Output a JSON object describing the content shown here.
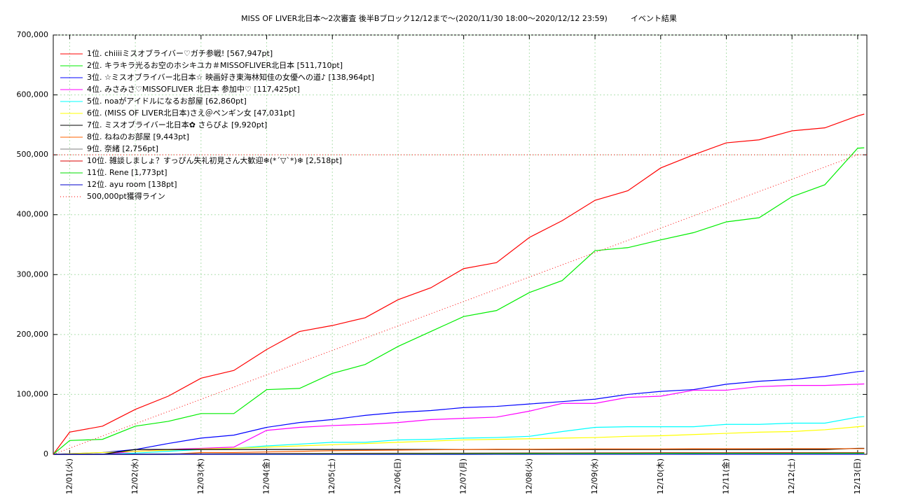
{
  "chart_data": {
    "type": "line",
    "title": "MISS OF LIVER北日本～2次審査 後半Bブロック12/12まで～(2020/11/30 18:00～2020/12/12 23:59)　　　イベント結果",
    "x": [
      0.75,
      1,
      1.5,
      2,
      2.5,
      3,
      3.5,
      4,
      4.5,
      5,
      5.5,
      6,
      6.5,
      7,
      7.5,
      8,
      8.5,
      9,
      9.5,
      10,
      10.5,
      11,
      11.5,
      12,
      12.5,
      13,
      13.1
    ],
    "xlim": [
      0.75,
      13.14
    ],
    "xticks": [
      {
        "value": 1,
        "label": "12/01(火)"
      },
      {
        "value": 2,
        "label": "12/02(水)"
      },
      {
        "value": 3,
        "label": "12/03(木)"
      },
      {
        "value": 4,
        "label": "12/04(金)"
      },
      {
        "value": 5,
        "label": "12/05(土)"
      },
      {
        "value": 6,
        "label": "12/06(日)"
      },
      {
        "value": 7,
        "label": "12/07(月)"
      },
      {
        "value": 8,
        "label": "12/08(火)"
      },
      {
        "value": 9,
        "label": "12/09(水)"
      },
      {
        "value": 10,
        "label": "12/10(木)"
      },
      {
        "value": 11,
        "label": "12/11(金)"
      },
      {
        "value": 12,
        "label": "12/12(土)"
      },
      {
        "value": 13,
        "label": "12/13(日)"
      }
    ],
    "ylim": [
      0,
      700000
    ],
    "yticks": [
      {
        "value": 0,
        "label": "0"
      },
      {
        "value": 100000,
        "label": "100,000"
      },
      {
        "value": 200000,
        "label": "200,000"
      },
      {
        "value": 300000,
        "label": "300,000"
      },
      {
        "value": 400000,
        "label": "400,000"
      },
      {
        "value": 500000,
        "label": "500,000"
      },
      {
        "value": 600000,
        "label": "600,000"
      },
      {
        "value": 700000,
        "label": "700,000"
      }
    ],
    "grid": true,
    "legend": "upper left",
    "series": [
      {
        "name": "1位. chiiiiミスオブライバー♡ガチ参戦! [567,947pt]",
        "color": "#ff0000",
        "values": [
          0,
          37000,
          47000,
          75000,
          97000,
          127000,
          140000,
          175000,
          205000,
          215000,
          228000,
          258000,
          278000,
          310000,
          320000,
          362000,
          390000,
          424000,
          440000,
          478000,
          500000,
          520000,
          525000,
          540000,
          545000,
          565000,
          567947
        ]
      },
      {
        "name": "2位. キラキラ光るお空のホシキユカ＃MISSOFLIVER北日本 [511,710pt]",
        "color": "#00ee00",
        "values": [
          0,
          23000,
          25000,
          47000,
          55000,
          68000,
          68000,
          108000,
          110000,
          135000,
          150000,
          180000,
          205000,
          230000,
          240000,
          270000,
          290000,
          340000,
          345000,
          358000,
          370000,
          388000,
          395000,
          430000,
          450000,
          511000,
          511710
        ]
      },
      {
        "name": "3位. ☆ミスオブライバー北日本☆ 映画好き東海林知佳の女優への道♪ [138,964pt]",
        "color": "#0000ff",
        "values": [
          0,
          1000,
          3000,
          8000,
          18000,
          27000,
          32000,
          45000,
          53000,
          58000,
          65000,
          70000,
          73000,
          78000,
          80000,
          84000,
          88000,
          92000,
          100000,
          105000,
          108000,
          117000,
          122000,
          125000,
          130000,
          138000,
          138964
        ]
      },
      {
        "name": "4位. みさみさ♡MISSOFLIVER 北日本 参加中♡ [117,425pt]",
        "color": "#ff00ff",
        "values": [
          0,
          0,
          0,
          5000,
          8000,
          10000,
          12000,
          40000,
          45000,
          48000,
          50000,
          53000,
          58000,
          60000,
          62000,
          72000,
          85000,
          85000,
          95000,
          97000,
          107000,
          107000,
          113000,
          115000,
          115000,
          117000,
          117425
        ]
      },
      {
        "name": "5位. noaがアイドルになるお部屋 [62,860pt]",
        "color": "#00ffff",
        "values": [
          0,
          0,
          0,
          2000,
          5000,
          8000,
          10000,
          14000,
          17000,
          20000,
          20000,
          24000,
          25000,
          27000,
          28000,
          30000,
          38000,
          45000,
          46000,
          46000,
          46000,
          50000,
          50000,
          52000,
          52000,
          62000,
          62860
        ]
      },
      {
        "name": "6位. (MISS OF LIVER北日本)さえ＠ペンギン女 [47,031pt]",
        "color": "#ffff00",
        "values": [
          0,
          1000,
          3000,
          5000,
          7000,
          9000,
          10000,
          12000,
          14000,
          16000,
          18000,
          20000,
          22000,
          24000,
          25000,
          26000,
          27000,
          28000,
          30000,
          31000,
          33000,
          35000,
          37000,
          38000,
          41000,
          46000,
          47031
        ]
      },
      {
        "name": "7位. ミスオブライバー北日本✿ さらぴよ [9,920pt]",
        "color": "#000000",
        "values": [
          0,
          0,
          0,
          8000,
          8000,
          8000,
          8000,
          8000,
          8000,
          8000,
          8000,
          8000,
          8000,
          8000,
          8000,
          8000,
          8000,
          8000,
          8000,
          8000,
          8000,
          8000,
          8000,
          8000,
          8000,
          9900,
          9920
        ]
      },
      {
        "name": "8位. ねねのお部屋 [9,443pt]",
        "color": "#ff6000",
        "values": [
          0,
          0,
          0,
          0,
          0,
          3000,
          3000,
          4000,
          5000,
          6000,
          6500,
          7000,
          7500,
          8000,
          8500,
          8500,
          8800,
          9000,
          9000,
          9000,
          9200,
          9200,
          9300,
          9400,
          9400,
          9443,
          9443
        ]
      },
      {
        "name": "9位. 奈緒 [2,756pt]",
        "color": "#808080",
        "values": [
          0,
          0,
          0,
          500,
          800,
          1000,
          1200,
          1400,
          1500,
          1600,
          1800,
          1900,
          2000,
          2100,
          2200,
          2300,
          2400,
          2500,
          2500,
          2600,
          2600,
          2700,
          2700,
          2700,
          2750,
          2756,
          2756
        ]
      },
      {
        "name": "10位. 雑談しましょ？すっぴん失礼初見さん大歓迎❄(*´▽`*)❄ [2,518pt]",
        "color": "#dd0000",
        "values": [
          0,
          0,
          0,
          0,
          0,
          500,
          700,
          900,
          1000,
          1200,
          1400,
          1500,
          1600,
          1700,
          1800,
          1900,
          2000,
          2100,
          2200,
          2300,
          2400,
          2400,
          2450,
          2500,
          2500,
          2518,
          2518
        ]
      },
      {
        "name": "11位. Rene [1,773pt]",
        "color": "#00dd00",
        "values": [
          0,
          0,
          0,
          0,
          0,
          200,
          300,
          500,
          600,
          700,
          800,
          900,
          1000,
          1100,
          1200,
          1300,
          1400,
          1500,
          1500,
          1600,
          1600,
          1700,
          1700,
          1700,
          1770,
          1773,
          1773
        ]
      },
      {
        "name": "12位. ayu room [138pt]",
        "color": "#0000cc",
        "values": [
          0,
          0,
          0,
          0,
          0,
          0,
          0,
          0,
          0,
          0,
          0,
          20,
          30,
          40,
          50,
          60,
          70,
          80,
          90,
          100,
          110,
          120,
          125,
          130,
          135,
          138,
          138
        ]
      },
      {
        "name": "500,000pt獲得ライン",
        "color": "#ff0000",
        "dashed": true,
        "x": [
          0.75,
          13
        ],
        "values": [
          0,
          500000
        ],
        "hline": 500000
      }
    ]
  }
}
